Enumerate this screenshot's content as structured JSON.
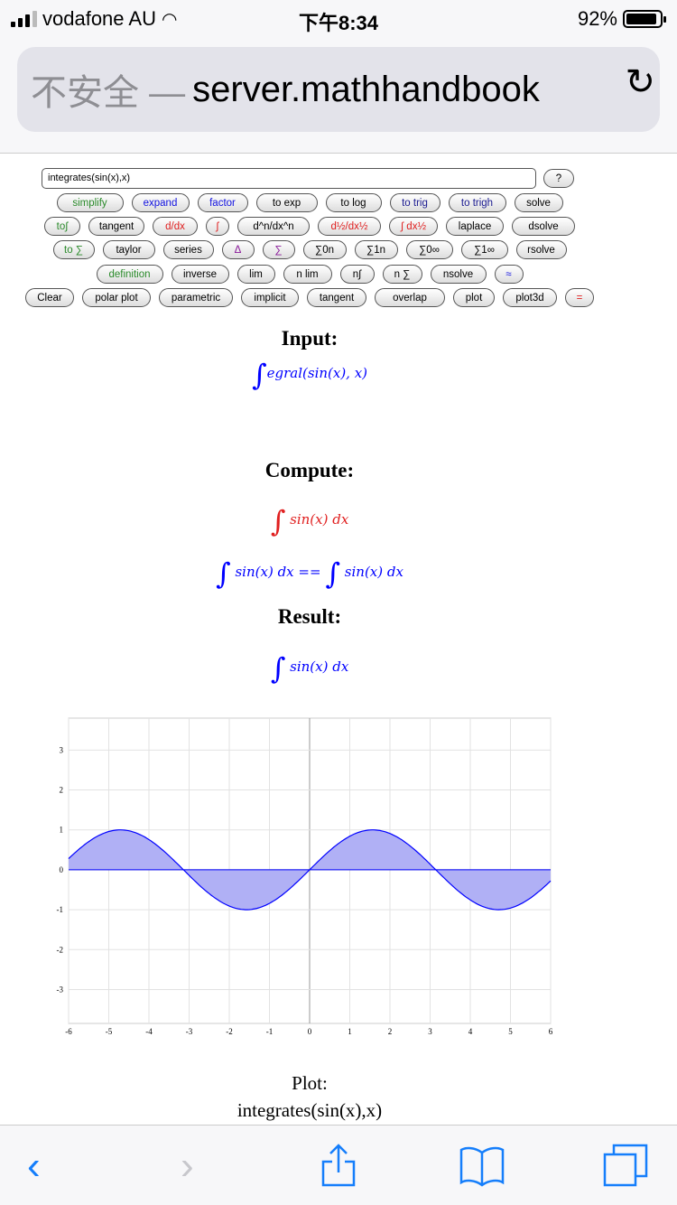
{
  "status": {
    "carrier": "vodafone AU",
    "time": "下午8:34",
    "battery": "92%",
    "battery_level": 0.92
  },
  "browser": {
    "insecure_label": "不安全 —",
    "host": "server.mathhandbook"
  },
  "input": {
    "value": "integrates(sin(x),x)",
    "help": "?"
  },
  "button_rows": [
    [
      {
        "label": "simplify",
        "c": "g"
      },
      {
        "label": "expand",
        "c": "b"
      },
      {
        "label": "factor",
        "c": "b"
      },
      {
        "label": "to exp",
        "c": ""
      },
      {
        "label": "to log",
        "c": ""
      },
      {
        "label": "to trig",
        "c": "db"
      },
      {
        "label": "to trigh",
        "c": "db"
      },
      {
        "label": "solve",
        "c": ""
      }
    ],
    [
      {
        "label": "to∫",
        "c": "g"
      },
      {
        "label": "tangent",
        "c": ""
      },
      {
        "label": "d/dx",
        "c": "r"
      },
      {
        "label": "∫",
        "c": "r"
      },
      {
        "label": "d^n/dx^n",
        "c": ""
      },
      {
        "label": "d½/dx½",
        "c": "r"
      },
      {
        "label": "∫ dx½",
        "c": "r"
      },
      {
        "label": "laplace",
        "c": ""
      },
      {
        "label": "dsolve",
        "c": ""
      }
    ],
    [
      {
        "label": "to ∑",
        "c": "g"
      },
      {
        "label": "taylor",
        "c": ""
      },
      {
        "label": "series",
        "c": ""
      },
      {
        "label": "Δ",
        "c": "p"
      },
      {
        "label": "∑",
        "c": "p"
      },
      {
        "label": "∑0n",
        "c": ""
      },
      {
        "label": "∑1n",
        "c": ""
      },
      {
        "label": "∑0∞",
        "c": ""
      },
      {
        "label": "∑1∞",
        "c": ""
      },
      {
        "label": "rsolve",
        "c": ""
      }
    ],
    [
      {
        "label": "definition",
        "c": "g"
      },
      {
        "label": "inverse",
        "c": ""
      },
      {
        "label": "lim",
        "c": ""
      },
      {
        "label": "n lim",
        "c": ""
      },
      {
        "label": "n∫",
        "c": ""
      },
      {
        "label": "n ∑",
        "c": ""
      },
      {
        "label": "nsolve",
        "c": ""
      },
      {
        "label": "≈",
        "c": "b"
      }
    ],
    [
      {
        "label": "Clear",
        "c": ""
      },
      {
        "label": "polar plot",
        "c": ""
      },
      {
        "label": "parametric",
        "c": ""
      },
      {
        "label": "implicit",
        "c": ""
      },
      {
        "label": "tangent",
        "c": ""
      },
      {
        "label": "overlap",
        "c": ""
      },
      {
        "label": "plot",
        "c": ""
      },
      {
        "label": "plot3d",
        "c": ""
      },
      {
        "label": "=",
        "c": "r"
      }
    ]
  ],
  "sections": {
    "input_heading": "Input:",
    "input_math": "egral(sin(x), x)",
    "compute_heading": "Compute:",
    "compute_math": "sin(x) dx",
    "equation_left": "sin(x) dx",
    "equation_op": "==",
    "equation_right": "sin(x) dx",
    "result_heading": "Result:",
    "result_math": "sin(x) dx",
    "integral_sign": "∫"
  },
  "chart_data": {
    "type": "area",
    "function": "sin(x)",
    "xlim": [
      -6,
      6
    ],
    "ylim": [
      -3.85,
      3.8
    ],
    "xticks": [
      -6,
      -5,
      -4,
      -3,
      -2,
      -1,
      0,
      1,
      2,
      3,
      4,
      5,
      6
    ],
    "yticks": [
      3,
      2,
      1,
      0,
      -1,
      -2,
      -3
    ],
    "grid": true,
    "line_color": "#0000ff",
    "fill_color": "#b0b0f5"
  },
  "plot_caption": {
    "line1": "Plot:",
    "line2": "integrates(sin(x),x)"
  }
}
